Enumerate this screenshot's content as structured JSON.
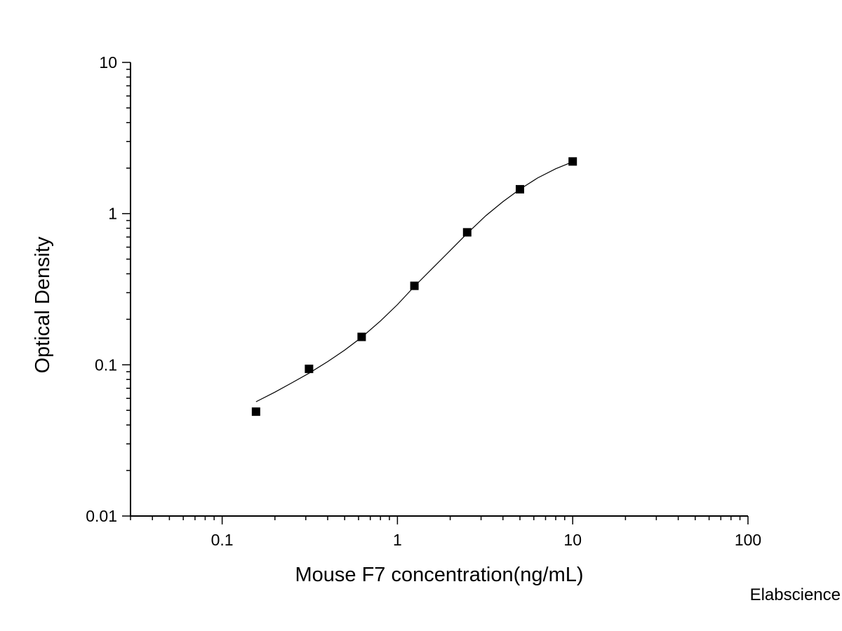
{
  "chart_data": {
    "type": "scatter",
    "title": "",
    "xlabel": "Mouse F7 concentration(ng/mL)",
    "ylabel": "Optical Density",
    "x_scale": "log",
    "y_scale": "log",
    "xlim": [
      0.03,
      100
    ],
    "ylim": [
      0.01,
      10
    ],
    "x_ticks": [
      0.1,
      1,
      10,
      100
    ],
    "x_tick_labels": [
      "0.1",
      "1",
      "10",
      "100"
    ],
    "y_ticks": [
      0.01,
      0.1,
      1,
      10
    ],
    "y_tick_labels": [
      "0.01",
      "0.1",
      "1",
      "10"
    ],
    "grid": false,
    "legend": "none",
    "series": [
      {
        "marker": "square",
        "color": "#000000",
        "x": [
          0.156,
          0.313,
          0.625,
          1.25,
          2.5,
          5,
          10
        ],
        "y": [
          0.049,
          0.094,
          0.153,
          0.333,
          0.752,
          1.449,
          2.212
        ]
      }
    ],
    "fit_curve": {
      "color": "#000000",
      "x": [
        0.156,
        0.2,
        0.25,
        0.313,
        0.4,
        0.5,
        0.625,
        0.8,
        1,
        1.25,
        1.6,
        2,
        2.5,
        3.2,
        4,
        5,
        6.3,
        8,
        10
      ],
      "y": [
        0.057,
        0.066,
        0.076,
        0.088,
        0.105,
        0.125,
        0.152,
        0.195,
        0.25,
        0.33,
        0.44,
        0.57,
        0.74,
        0.97,
        1.2,
        1.45,
        1.72,
        1.98,
        2.2
      ]
    }
  },
  "watermark": "Elabscience"
}
